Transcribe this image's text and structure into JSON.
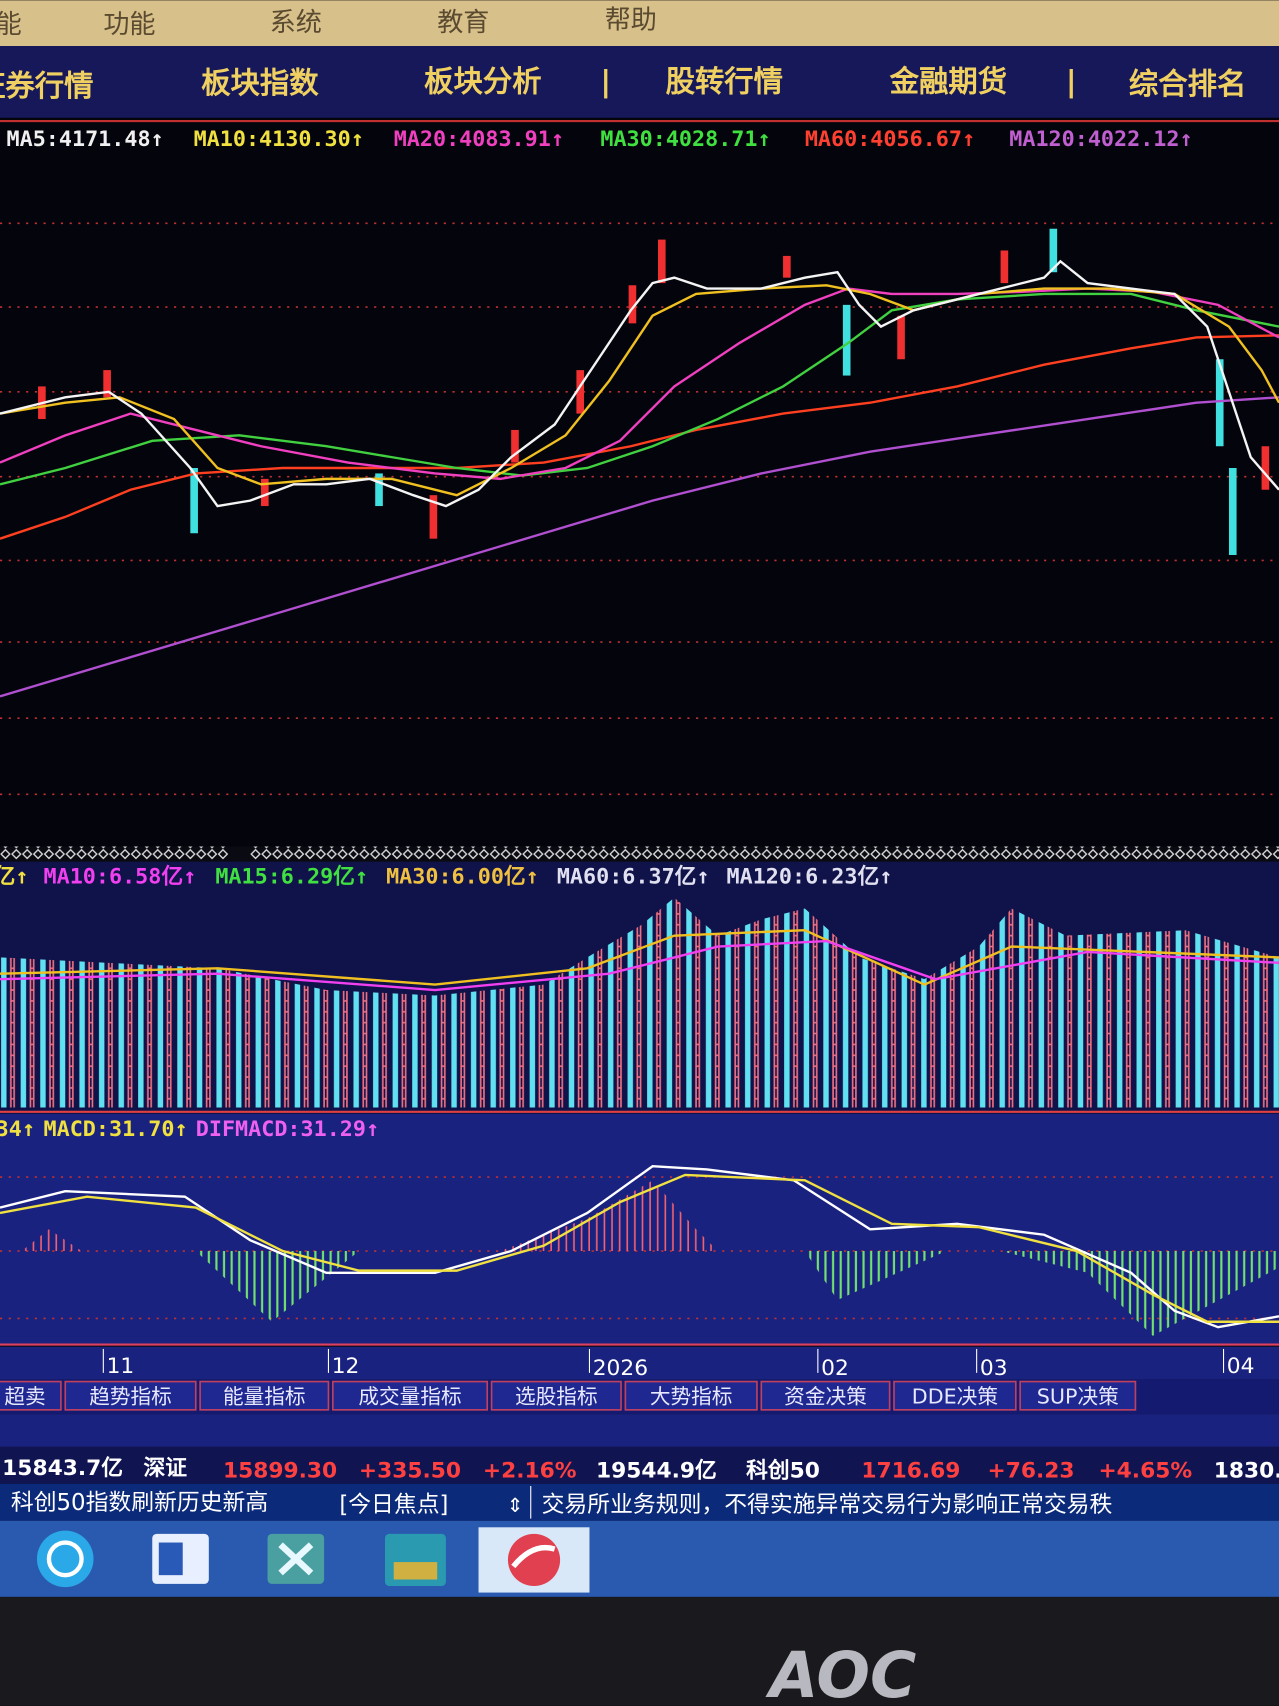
{
  "menu": [
    "能",
    "功能",
    "系统",
    "教育",
    "帮助"
  ],
  "nav": [
    "证券行情",
    "板块指数",
    "板块分析",
    "|",
    "股转行情",
    "金融期货",
    "|",
    "综合排名"
  ],
  "price_ma": [
    "MA5:4171.48↑",
    "MA10:4130.30↑",
    "MA20:4083.91↑",
    "MA30:4028.71↑",
    "MA60:4056.67↑",
    "MA120:4022.12↑"
  ],
  "volume_ma": [
    "亿↑",
    "MA10:6.58亿↑",
    "MA15:6.29亿↑",
    "MA30:6.00亿↑",
    "MA60:6.37亿↑",
    "MA120:6.23亿↑"
  ],
  "macd_labels": [
    "34↑",
    "MACD:31.70↑",
    "DIFMACD:31.29↑"
  ],
  "dates": [
    "11",
    "12",
    "2026",
    "02",
    "03",
    "04"
  ],
  "tabs": [
    "超卖",
    "趋势指标",
    "能量指标",
    "成交量指标",
    "选股指标",
    "大势指标",
    "资金决策",
    "DDE决策",
    "SUP决策"
  ],
  "status": [
    "15843.7亿",
    "深证",
    "15899.30",
    "+335.50",
    "+2.16%",
    "19544.9亿",
    "科创50",
    "1716.69",
    "+76.23",
    "+4.65%",
    "1830."
  ],
  "ticker": [
    "科创50指数刷新历史新高",
    "[今日焦点]",
    "交易所业务规则，不得实施异常交易行为影响正常交易秩"
  ],
  "brand": "AOC"
}
